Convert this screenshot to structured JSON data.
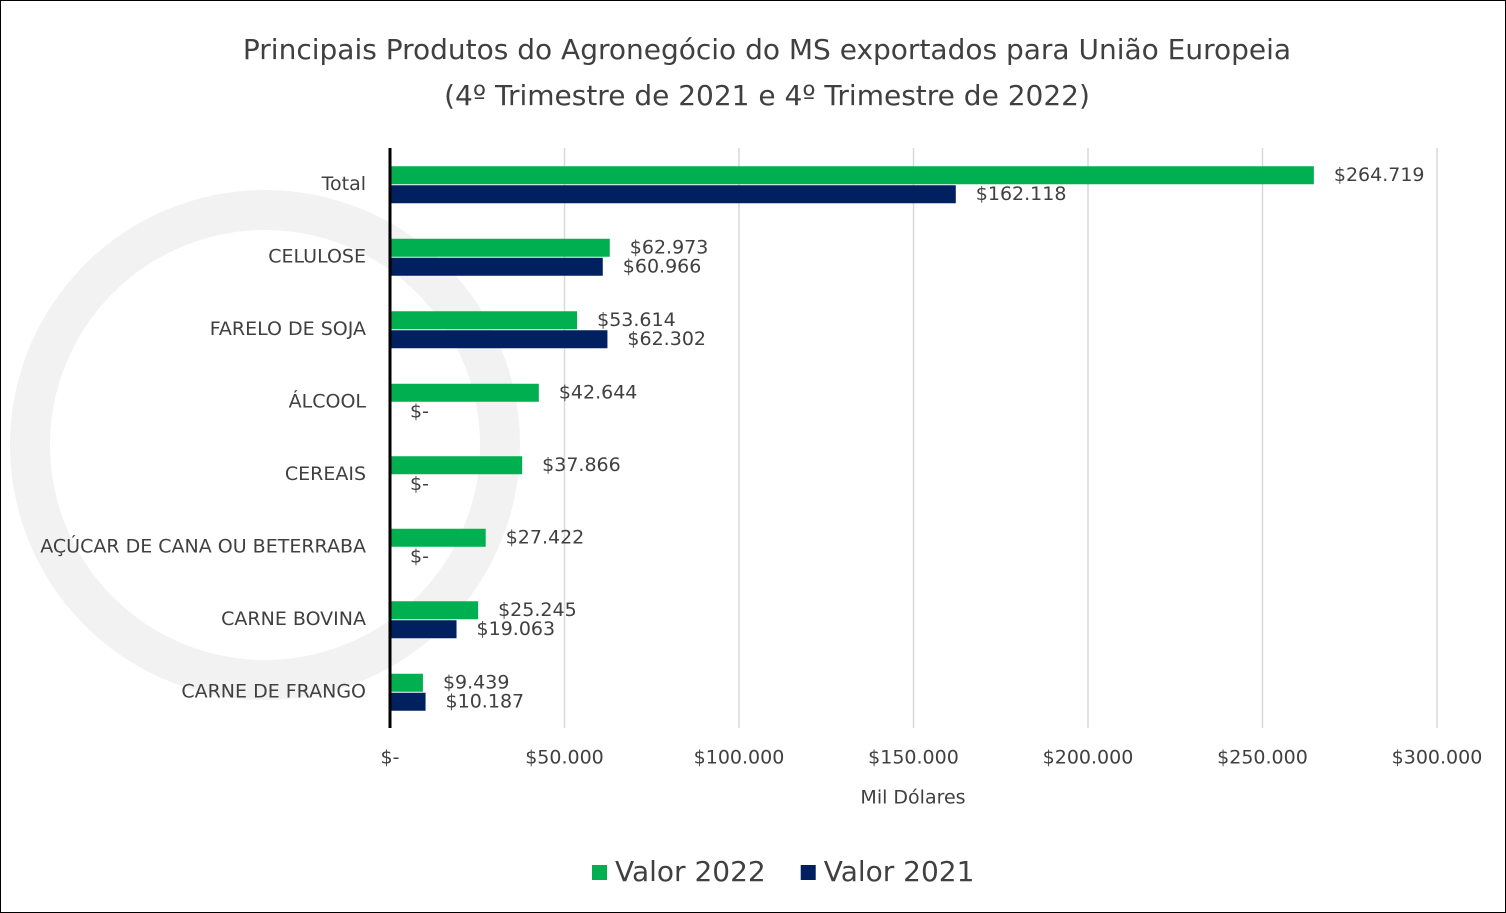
{
  "chart_data": {
    "type": "hbar",
    "title": "Principais Produtos do Agronegócio do MS exportados para União Europeia",
    "subtitle": "(4º Trimestre de 2021 e 4º Trimestre de 2022)",
    "x_label": "Mil Dólares",
    "categories": [
      "Total",
      "CELULOSE",
      "FARELO DE SOJA",
      "ÁLCOOL",
      "CEREAIS",
      "AÇÚCAR DE CANA OU BETERRABA",
      "CARNE BOVINA",
      "CARNE DE FRANGO"
    ],
    "series": [
      {
        "name": "Valor 2022",
        "color": "#00b050",
        "values": [
          264719,
          62973,
          53614,
          42644,
          37866,
          27422,
          25245,
          9439
        ],
        "value_labels": [
          "$264.719",
          "$62.973",
          "$53.614",
          "$42.644",
          "$37.866",
          "$27.422",
          "$25.245",
          "$9.439"
        ]
      },
      {
        "name": "Valor 2021",
        "color": "#002060",
        "values": [
          162118,
          60966,
          62302,
          0,
          0,
          0,
          19063,
          10187
        ],
        "value_labels": [
          "$162.118",
          "$60.966",
          "$62.302",
          "$-",
          "$-",
          "$-",
          "$19.063",
          "$10.187"
        ]
      }
    ],
    "xlim": [
      0,
      300000
    ],
    "xticks": [
      {
        "value": 0,
        "label": "$-"
      },
      {
        "value": 50000,
        "label": "$50.000"
      },
      {
        "value": 100000,
        "label": "$100.000"
      },
      {
        "value": 150000,
        "label": "$150.000"
      },
      {
        "value": 200000,
        "label": "$200.000"
      },
      {
        "value": 250000,
        "label": "$250.000"
      },
      {
        "value": 300000,
        "label": "$300.000"
      }
    ],
    "grid": true,
    "legend": "bottom"
  }
}
